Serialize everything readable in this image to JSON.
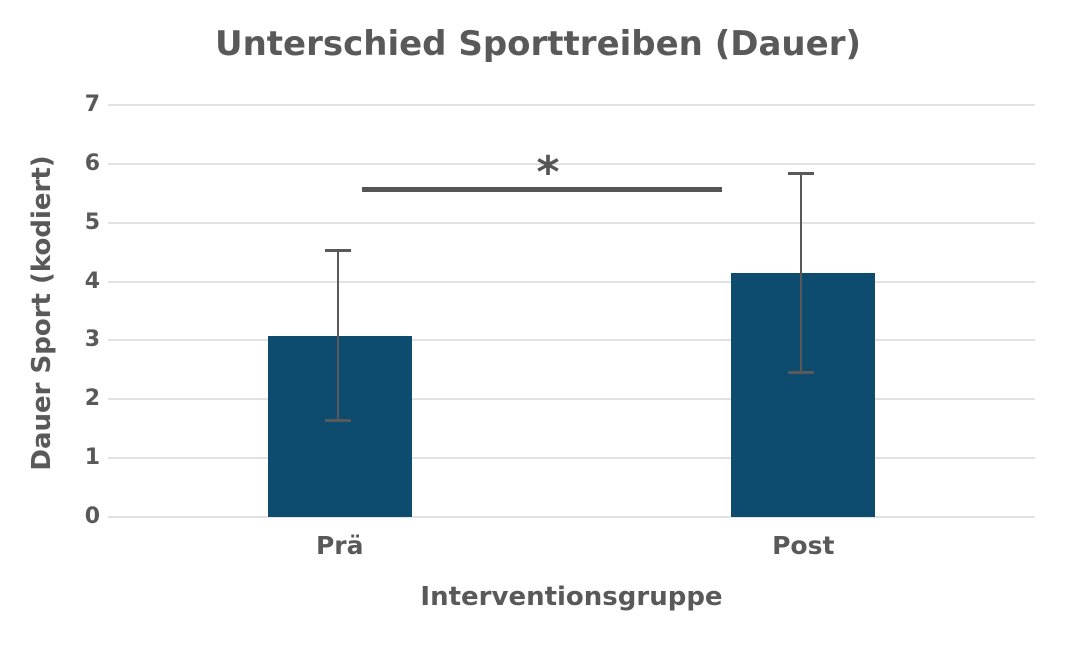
{
  "chart_data": {
    "type": "bar",
    "title": "Unterschied Sporttreiben (Dauer)",
    "xlabel": "Interventionsgruppe",
    "ylabel": "Dauer Sport (kodiert)",
    "categories": [
      "Prä",
      "Post"
    ],
    "values": [
      3.08,
      4.15
    ],
    "error_bars": [
      1.45,
      1.7
    ],
    "ylim": [
      0,
      7
    ],
    "yticks": [
      0,
      1,
      2,
      3,
      4,
      5,
      6,
      7
    ],
    "grid": "horizontal",
    "legend": "none",
    "significance": {
      "label": "*",
      "bar_y": 5.58,
      "between": [
        "Prä",
        "Post"
      ]
    },
    "colors": {
      "bar": "#0d4c6f",
      "text": "#595959",
      "grid": "#e2e2e2",
      "error": "#595959",
      "significance": "#555555"
    }
  }
}
